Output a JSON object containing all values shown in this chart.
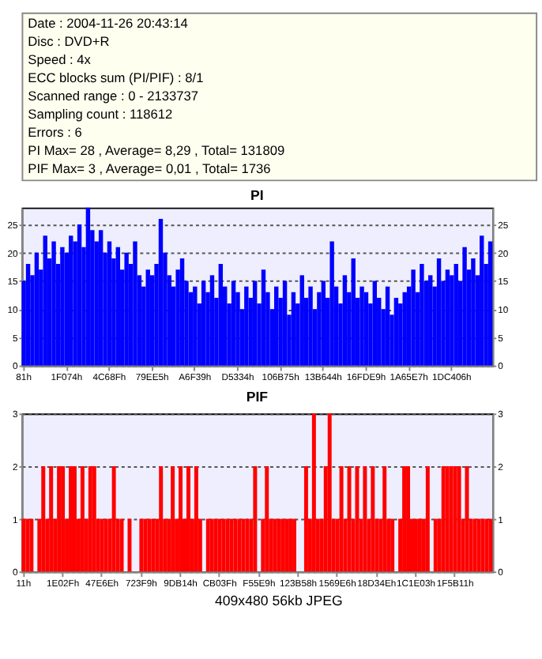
{
  "chart_data": [
    {
      "type": "other",
      "annotations": [
        "Date : 2004-11-26 20:43:14",
        "Disc : DVD+R",
        "Speed : 4x",
        "ECC blocks sum (PI/PIF) : 8/1",
        "Scanned range : 0 - 2133737",
        "Sampling count : 118612",
        "Errors : 6",
        "PI Max= 28 , Average= 8,29 , Total= 131809",
        "PIF Max= 3 , Average= 0,01 , Total= 1736"
      ]
    },
    {
      "type": "bar",
      "title": "PI",
      "color": "#0000ff",
      "grid": "y",
      "ylim": [
        0,
        28
      ],
      "yticks": [
        0,
        5,
        10,
        15,
        20,
        25
      ],
      "y2lim": [
        0,
        28
      ],
      "y2ticks": [
        0,
        5,
        10,
        15,
        20,
        25
      ],
      "categories": [
        "81h",
        null,
        null,
        null,
        null,
        null,
        null,
        null,
        null,
        null,
        "1F074h",
        null,
        null,
        null,
        null,
        null,
        null,
        null,
        null,
        null,
        "4C68Fh",
        null,
        null,
        null,
        null,
        null,
        null,
        null,
        null,
        null,
        "79EE5h",
        null,
        null,
        null,
        null,
        null,
        null,
        null,
        null,
        null,
        "A6F39h",
        null,
        null,
        null,
        null,
        null,
        null,
        null,
        null,
        null,
        "D5334h",
        null,
        null,
        null,
        null,
        null,
        null,
        null,
        null,
        null,
        "106B75h",
        null,
        null,
        null,
        null,
        null,
        null,
        null,
        null,
        null,
        "13B644h",
        null,
        null,
        null,
        null,
        null,
        null,
        null,
        null,
        null,
        "16FDE9h",
        null,
        null,
        null,
        null,
        null,
        null,
        null,
        null,
        null,
        "1A65E7h",
        null,
        null,
        null,
        null,
        null,
        null,
        null,
        null,
        null,
        "1DC406h",
        null,
        null,
        null,
        null,
        null,
        null,
        null,
        null,
        null
      ],
      "values": [
        15,
        18,
        16,
        20,
        17,
        23,
        19,
        22,
        18,
        21,
        20,
        23,
        22,
        25,
        21,
        28,
        24,
        22,
        24,
        20,
        22,
        19,
        21,
        17,
        20,
        18,
        22,
        16,
        14,
        17,
        16,
        18,
        26,
        20,
        16,
        14,
        17,
        19,
        15,
        13,
        14,
        11,
        15,
        13,
        16,
        12,
        18,
        14,
        11,
        15,
        13,
        10,
        14,
        12,
        15,
        11,
        17,
        13,
        10,
        14,
        12,
        15,
        9,
        13,
        11,
        16,
        12,
        14,
        10,
        13,
        15,
        12,
        22,
        14,
        11,
        16,
        13,
        19,
        12,
        14,
        13,
        11,
        15,
        12,
        10,
        14,
        9,
        12,
        11,
        13,
        14,
        17,
        13,
        18,
        15,
        16,
        14,
        19,
        15,
        17,
        16,
        18,
        15,
        21,
        17,
        19,
        16,
        23,
        18,
        22
      ]
    },
    {
      "type": "bar",
      "title": "PIF",
      "color": "#ff0000",
      "grid": "y",
      "ylim": [
        0,
        3
      ],
      "yticks": [
        0,
        1,
        2,
        3
      ],
      "y2lim": [
        0,
        3
      ],
      "y2ticks": [
        0,
        1,
        2,
        3
      ],
      "categories": [
        "11h",
        null,
        null,
        null,
        null,
        null,
        null,
        null,
        null,
        null,
        "1E02Fh",
        null,
        null,
        null,
        null,
        null,
        null,
        null,
        null,
        null,
        "47E6Eh",
        null,
        null,
        null,
        null,
        null,
        null,
        null,
        null,
        null,
        "723F9h",
        null,
        null,
        null,
        null,
        null,
        null,
        null,
        null,
        null,
        "9DB14h",
        null,
        null,
        null,
        null,
        null,
        null,
        null,
        null,
        null,
        "CB03Fh",
        null,
        null,
        null,
        null,
        null,
        null,
        null,
        null,
        null,
        "F55E9h",
        null,
        null,
        null,
        null,
        null,
        null,
        null,
        null,
        null,
        "123B58h",
        null,
        null,
        null,
        null,
        null,
        null,
        null,
        null,
        null,
        "1569E6h",
        null,
        null,
        null,
        null,
        null,
        null,
        null,
        null,
        null,
        "18D34Eh",
        null,
        null,
        null,
        null,
        null,
        null,
        null,
        null,
        null,
        "1C1E03h",
        null,
        null,
        null,
        null,
        null,
        null,
        null,
        null,
        null,
        "1F5B11h",
        null,
        null,
        null,
        null,
        null,
        null,
        null,
        null,
        null
      ],
      "values": [
        1,
        1,
        1,
        0,
        1,
        2,
        1,
        2,
        1,
        2,
        2,
        1,
        2,
        2,
        1,
        2,
        1,
        2,
        2,
        1,
        1,
        1,
        1,
        2,
        1,
        1,
        0,
        1,
        0,
        0,
        1,
        1,
        1,
        1,
        1,
        2,
        1,
        1,
        2,
        1,
        2,
        1,
        2,
        1,
        2,
        1,
        0,
        1,
        1,
        1,
        1,
        1,
        1,
        1,
        1,
        1,
        1,
        1,
        1,
        2,
        0,
        1,
        2,
        1,
        1,
        1,
        1,
        1,
        1,
        1,
        0,
        0,
        2,
        1,
        3,
        1,
        1,
        2,
        3,
        1,
        1,
        2,
        1,
        2,
        1,
        2,
        1,
        2,
        1,
        2,
        1,
        1,
        2,
        1,
        1,
        0,
        1,
        2,
        2,
        1,
        1,
        1,
        1,
        2,
        0,
        1,
        1,
        2,
        2,
        2,
        2,
        2,
        1,
        2,
        1,
        1,
        1,
        1,
        1,
        1
      ],
      "annotations": [
        "409x480 56kb JPEG"
      ]
    }
  ]
}
